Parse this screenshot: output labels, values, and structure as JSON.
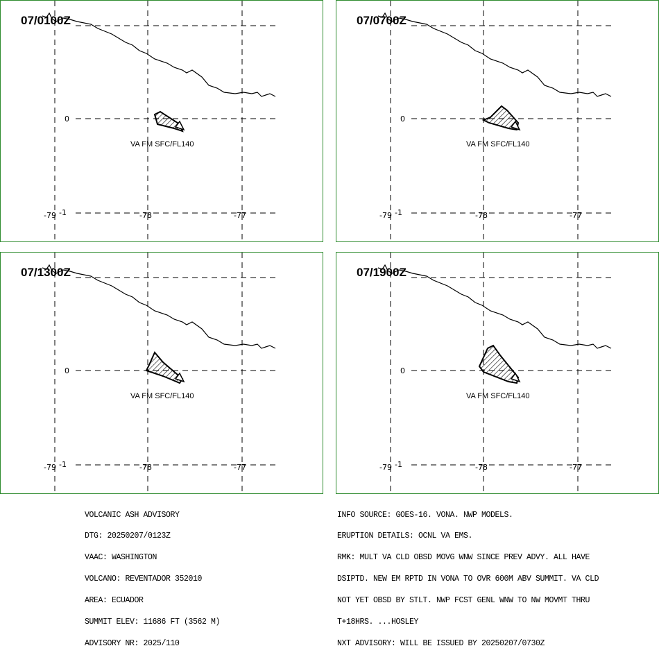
{
  "panels": [
    {
      "title": "07/0100Z",
      "va_label": "VA FM SFC/FL140"
    },
    {
      "title": "07/0700Z",
      "va_label": "VA FM SFC/FL140"
    },
    {
      "title": "07/1300Z",
      "va_label": "VA FM SFC/FL140"
    },
    {
      "title": "07/1900Z",
      "va_label": "VA FM SFC/FL140"
    }
  ],
  "axis": {
    "lat_label": "0",
    "lat_bottom_label": "-1",
    "lon_labels": [
      "-79",
      "-78",
      "-77"
    ]
  },
  "advisory_left": [
    "VOLCANIC ASH ADVISORY",
    "DTG: 20250207/0123Z",
    "VAAC: WASHINGTON",
    "VOLCANO: REVENTADOR 352010",
    "AREA: ECUADOR",
    "SUMMIT ELEV: 11686 FT (3562 M)",
    "ADVISORY NR: 2025/110"
  ],
  "advisory_right": [
    "INFO SOURCE: GOES-16. VONA. NWP MODELS.",
    "ERUPTION DETAILS: OCNL VA EMS.",
    "RMK: MULT VA CLD OBSD MOVG WNW SINCE PREV ADVY. ALL HAVE",
    "DSIPTD. NEW EM RPTD IN VONA TO OVR 600M ABV SUMMIT. VA CLD",
    "NOT YET OBSD BY STLT. NWP FCST GENL WNW TO NW MOVMT THRU",
    "T+18HRS. ...HOSLEY",
    "NXT ADVISORY: WILL BE ISSUED BY 20250207/0730Z"
  ],
  "colors": {
    "panel_border": "#2e8b2e",
    "lines": "#000000"
  }
}
